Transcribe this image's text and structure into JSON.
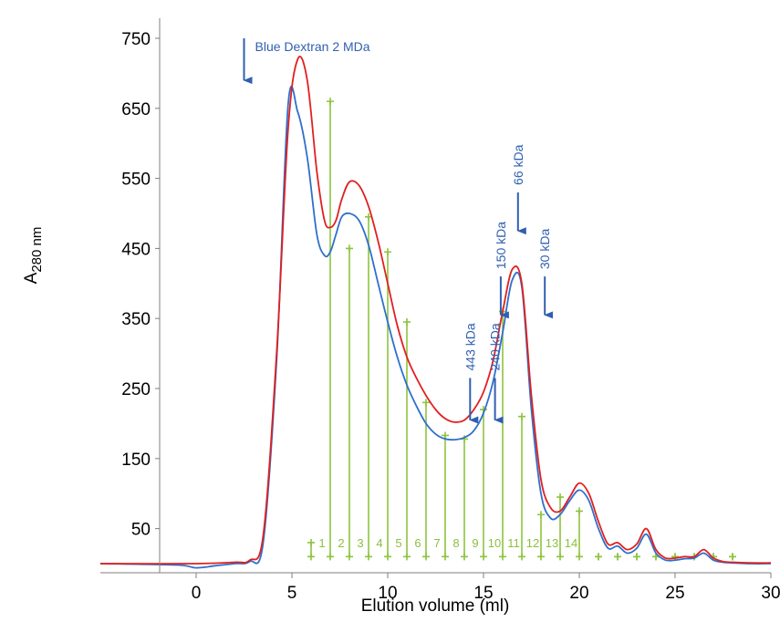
{
  "chart_data": {
    "type": "line",
    "xlabel": "Elution volume (ml)",
    "ylabel_main": "A",
    "ylabel_sub": "280 nm",
    "xlim": [
      -5,
      30
    ],
    "ylim": [
      0,
      750
    ],
    "x_ticks": [
      0,
      5,
      10,
      15,
      20,
      25,
      30
    ],
    "y_ticks": [
      50,
      150,
      250,
      350,
      450,
      550,
      650,
      750
    ],
    "colors": {
      "red": "#e02020",
      "blue": "#2f6fcc",
      "fraction": "#8cc43c",
      "marker": "#2f5fb0"
    },
    "series": [
      {
        "color": "red",
        "x": [
          -5,
          0,
          2,
          2.8,
          3.5,
          4.2,
          4.8,
          5.3,
          5.8,
          6.3,
          6.7,
          7.0,
          7.3,
          7.6,
          8.0,
          8.5,
          9.0,
          9.5,
          10.0,
          10.5,
          11.0,
          11.5,
          12.0,
          12.5,
          13.0,
          13.5,
          14.0,
          14.5,
          15.0,
          15.5,
          16.0,
          16.5,
          17.0,
          17.5,
          18.0,
          18.5,
          19.0,
          19.5,
          20.0,
          20.5,
          21.0,
          21.5,
          22.0,
          22.5,
          23.0,
          23.5,
          24.0,
          24.5,
          25.0,
          25.5,
          26.0,
          26.5,
          27.0,
          27.5,
          28.0,
          29.0,
          30.0
        ],
        "y": [
          0,
          0,
          2,
          5,
          40,
          300,
          620,
          720,
          690,
          560,
          490,
          480,
          490,
          520,
          545,
          540,
          510,
          460,
          400,
          340,
          295,
          265,
          240,
          220,
          207,
          202,
          205,
          220,
          245,
          290,
          360,
          420,
          400,
          240,
          120,
          80,
          75,
          95,
          115,
          100,
          60,
          28,
          30,
          20,
          28,
          50,
          20,
          8,
          8,
          10,
          10,
          20,
          8,
          3,
          2,
          1,
          1
        ]
      },
      {
        "color": "blue",
        "x": [
          -5,
          -1,
          0,
          1,
          2,
          2.8,
          3.5,
          4.2,
          4.8,
          5.3,
          5.8,
          6.3,
          6.7,
          7.0,
          7.3,
          7.6,
          8.0,
          8.5,
          9.0,
          9.5,
          10.0,
          10.5,
          11.0,
          11.5,
          12.0,
          12.5,
          13.0,
          13.5,
          14.0,
          14.5,
          15.0,
          15.5,
          16.0,
          16.5,
          17.0,
          17.5,
          18.0,
          18.5,
          19.0,
          19.5,
          20.0,
          20.5,
          21.0,
          21.5,
          22.0,
          22.5,
          23.0,
          23.5,
          24.0,
          24.5,
          25.0,
          25.5,
          26.0,
          26.5,
          27.0,
          27.5,
          28.0,
          29.0,
          30.0
        ],
        "y": [
          0,
          -2,
          -6,
          -3,
          0,
          3,
          30,
          290,
          655,
          645,
          580,
          470,
          440,
          445,
          470,
          495,
          500,
          490,
          455,
          400,
          345,
          295,
          255,
          225,
          200,
          185,
          178,
          177,
          180,
          190,
          215,
          260,
          330,
          405,
          395,
          220,
          100,
          65,
          70,
          90,
          105,
          90,
          50,
          22,
          25,
          15,
          22,
          42,
          15,
          5,
          5,
          7,
          8,
          15,
          5,
          2,
          1,
          0,
          0
        ]
      }
    ],
    "fractions": [
      {
        "label": "1",
        "x": 6.0,
        "top": 30
      },
      {
        "label": "2",
        "x": 7.0,
        "top": 660
      },
      {
        "label": "3",
        "x": 8.0,
        "top": 450
      },
      {
        "label": "4",
        "x": 9.0,
        "top": 495
      },
      {
        "label": "5",
        "x": 10.0,
        "top": 445
      },
      {
        "label": "6",
        "x": 11.0,
        "top": 345
      },
      {
        "label": "7",
        "x": 12.0,
        "top": 230
      },
      {
        "label": "8",
        "x": 13.0,
        "top": 183
      },
      {
        "label": "9",
        "x": 14.0,
        "top": 178
      },
      {
        "label": "10",
        "x": 15.0,
        "top": 220
      },
      {
        "label": "11",
        "x": 16.0,
        "top": 360
      },
      {
        "label": "12",
        "x": 17.0,
        "top": 210
      },
      {
        "label": "13",
        "x": 18.0,
        "top": 70
      },
      {
        "label": "14",
        "x": 19.0,
        "top": 95
      },
      {
        "label": "",
        "x": 20.0,
        "top": 75
      },
      {
        "label": "",
        "x": 21.0,
        "top": 10
      },
      {
        "label": "",
        "x": 22.0,
        "top": 10
      },
      {
        "label": "",
        "x": 23.0,
        "top": 10
      },
      {
        "label": "",
        "x": 24.0,
        "top": 10
      },
      {
        "label": "",
        "x": 25.0,
        "top": 10
      },
      {
        "label": "",
        "x": 26.0,
        "top": 10
      },
      {
        "label": "",
        "x": 27.0,
        "top": 10
      },
      {
        "label": "",
        "x": 28.0,
        "top": 10
      }
    ],
    "fraction_baseline": 10,
    "markers": [
      {
        "label": "Blue Dextran 2 MDa",
        "x": 2.5,
        "y_top": 750,
        "y_bottom": 690,
        "orientation": "horizontal"
      },
      {
        "label": "443 kDa",
        "x": 14.3,
        "y_top": 265,
        "y_bottom": 205,
        "orientation": "vertical"
      },
      {
        "label": "240 kDa",
        "x": 15.6,
        "y_top": 265,
        "y_bottom": 205,
        "orientation": "vertical"
      },
      {
        "label": "150 kDa",
        "x": 15.9,
        "y_top": 410,
        "y_bottom": 355,
        "orientation": "vertical"
      },
      {
        "label": "66 kDa",
        "x": 16.8,
        "y_top": 530,
        "y_bottom": 475,
        "orientation": "vertical"
      },
      {
        "label": "30 kDa",
        "x": 18.2,
        "y_top": 410,
        "y_bottom": 355,
        "orientation": "vertical"
      }
    ]
  }
}
